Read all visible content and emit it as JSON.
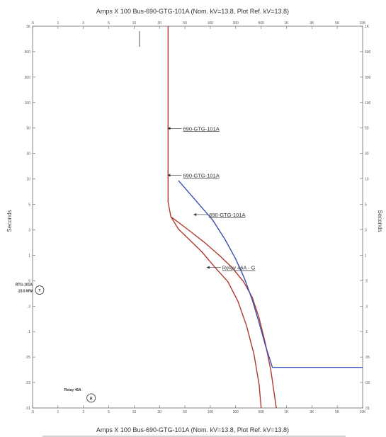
{
  "chart_data": {
    "type": "line",
    "title_top": "Amps  X  100   Bus-690-GTG-101A (Nom. kV=13.8, Plot Ref. kV=13.8)",
    "title_bottom": "Amps  X  100   Bus-690-GTG-101A (Nom. kV=13.8, Plot Ref. kV=13.8)",
    "ylabel_left": "Seconds",
    "ylabel_right": "Seconds",
    "x_scale": "log",
    "y_scale": "log",
    "xlim": [
      0.5,
      100
    ],
    "ylim": [
      0.01,
      1000
    ],
    "x_tick_labels": [
      ".5",
      "1",
      "3",
      "5",
      "10",
      "30",
      "50",
      "100",
      "300",
      "500",
      "1K",
      "3K",
      "5K",
      "10K"
    ],
    "y_tick_labels": [
      "1K",
      "500",
      "300",
      "100",
      "50",
      "30",
      "10",
      "5",
      "3",
      "1",
      ".5",
      ".3",
      ".1",
      ".05",
      ".03",
      ".01"
    ],
    "series": [
      {
        "name": "690-GTG-101A",
        "color": "#b03a2e",
        "points": [
          [
            4.4,
            1000
          ],
          [
            4.4,
            5
          ],
          [
            4.6,
            3.2
          ],
          [
            5.2,
            2.2
          ],
          [
            6.2,
            1.6
          ],
          [
            7.6,
            1.1
          ],
          [
            9.2,
            0.72
          ],
          [
            11.5,
            0.45
          ],
          [
            13.5,
            0.25
          ],
          [
            15.5,
            0.12
          ],
          [
            17.5,
            0.05
          ],
          [
            19,
            0.02
          ],
          [
            19.6,
            0.01
          ]
        ]
      },
      {
        "name": "690-GTG-101A",
        "color": "#b03a2e",
        "points": [
          [
            4.6,
            3.2
          ],
          [
            6,
            2.2
          ],
          [
            7.8,
            1.5
          ],
          [
            10,
            1.0
          ],
          [
            12.2,
            0.7
          ],
          [
            14.8,
            0.45
          ],
          [
            17,
            0.28
          ],
          [
            19,
            0.15
          ],
          [
            21,
            0.07
          ],
          [
            23,
            0.03
          ],
          [
            25,
            0.01
          ]
        ]
      },
      {
        "name": "690-GTG-101A",
        "color": "#3b4fb0",
        "points": [
          [
            5.2,
            9.5
          ],
          [
            7,
            5
          ],
          [
            9,
            2.9
          ],
          [
            11,
            1.6
          ],
          [
            13,
            0.9
          ],
          [
            15,
            0.5
          ],
          [
            17,
            0.26
          ],
          [
            19,
            0.13
          ],
          [
            21,
            0.066
          ],
          [
            23.5,
            0.034
          ],
          [
            100,
            0.034
          ]
        ]
      }
    ],
    "annotations": [
      {
        "text": "690-GTG-101A",
        "x": 5.6,
        "y": 43
      },
      {
        "text": "690-GTG-101A",
        "x": 5.6,
        "y": 10.5
      },
      {
        "text": "690-GTG-101A",
        "x": 8.5,
        "y": 3.2
      },
      {
        "text": "Relay 46A - G",
        "x": 10.5,
        "y": 0.65
      }
    ],
    "markers": [
      {
        "symbol": "T",
        "x": 0.56,
        "y": 0.35,
        "label_lines": [
          "RTG-101A",
          "23.5 MW"
        ]
      },
      {
        "symbol": "R",
        "x": 1.28,
        "y": 0.0135,
        "label_lines": [
          "Relay 46A"
        ]
      }
    ],
    "grid": false
  }
}
